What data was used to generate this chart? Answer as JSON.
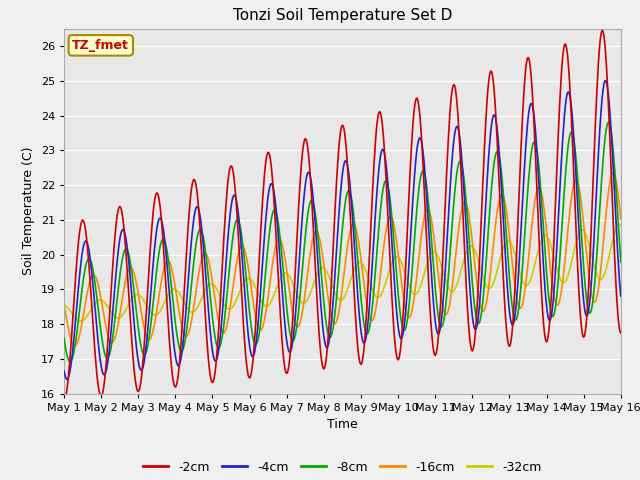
{
  "title": "Tonzi Soil Temperature Set D",
  "xlabel": "Time",
  "ylabel": "Soil Temperature (C)",
  "ylim": [
    16.0,
    26.5
  ],
  "yticks": [
    16.0,
    17.0,
    18.0,
    19.0,
    20.0,
    21.0,
    22.0,
    23.0,
    24.0,
    25.0,
    26.0
  ],
  "xtick_labels": [
    "May 1",
    "May 2",
    "May 3",
    "May 4",
    "May 5",
    "May 6",
    "May 7",
    "May 8",
    "May 9",
    "May 10",
    "May 11",
    "May 12",
    "May 13",
    "May 14",
    "May 15",
    "May 16"
  ],
  "series_labels": [
    "-2cm",
    "-4cm",
    "-8cm",
    "-16cm",
    "-32cm"
  ],
  "series_colors": [
    "#cc0000",
    "#2222cc",
    "#00aa00",
    "#ff8800",
    "#cccc00"
  ],
  "line_widths": [
    1.2,
    1.2,
    1.2,
    1.2,
    1.2
  ],
  "plot_bg": "#e8e8e8",
  "fig_bg": "#f0f0f0",
  "grid_color": "#ffffff",
  "annotation_text": "TZ_fmet",
  "annotation_bg": "#ffffcc",
  "annotation_border": "#aa8800",
  "annotation_color": "#cc0000"
}
